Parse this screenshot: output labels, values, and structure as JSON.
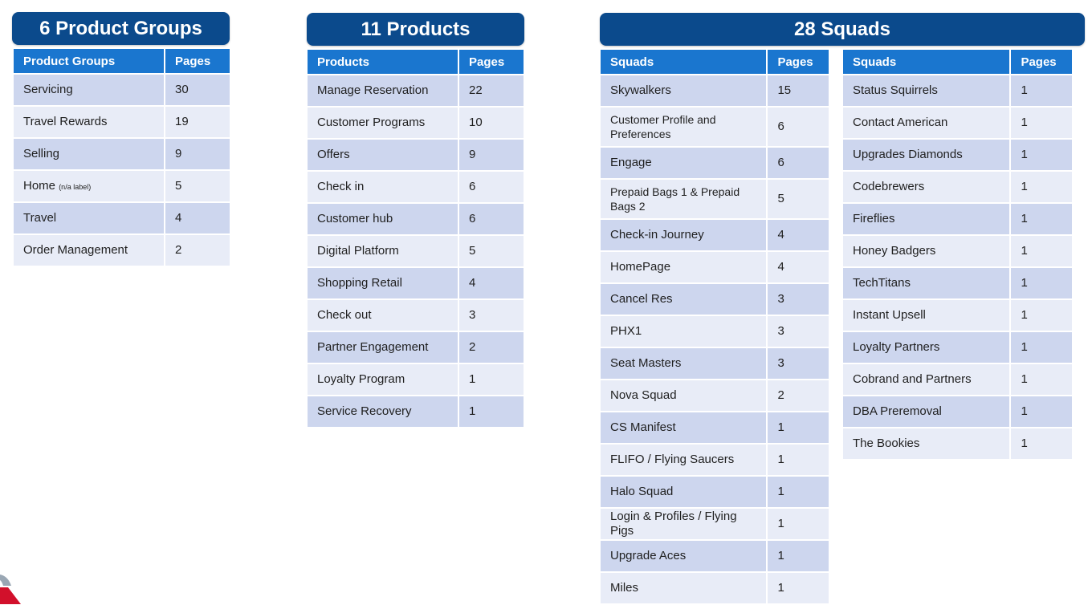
{
  "groups": {
    "banner": "6 Product Groups",
    "col1": "Product Groups",
    "col2": "Pages",
    "rows": [
      {
        "name": "Servicing",
        "pages": "30"
      },
      {
        "name": "Travel Rewards",
        "pages": "19"
      },
      {
        "name": "Selling",
        "pages": "9"
      },
      {
        "name": "Home",
        "note": "(n/a label)",
        "pages": "5"
      },
      {
        "name": "Travel",
        "pages": "4"
      },
      {
        "name": "Order Management",
        "pages": "2"
      }
    ]
  },
  "products": {
    "banner": "11 Products",
    "col1": "Products",
    "col2": "Pages",
    "rows": [
      {
        "name": "Manage Reservation",
        "pages": "22"
      },
      {
        "name": "Customer Programs",
        "pages": "10"
      },
      {
        "name": "Offers",
        "pages": "9"
      },
      {
        "name": "Check in",
        "pages": "6"
      },
      {
        "name": "Customer hub",
        "pages": "6"
      },
      {
        "name": "Digital Platform",
        "pages": "5"
      },
      {
        "name": "Shopping Retail",
        "pages": "4"
      },
      {
        "name": "Check out",
        "pages": "3"
      },
      {
        "name": "Partner Engagement",
        "pages": "2"
      },
      {
        "name": "Loyalty Program",
        "pages": "1"
      },
      {
        "name": "Service Recovery",
        "pages": "1"
      }
    ]
  },
  "squads": {
    "banner": "28 Squads",
    "col1": "Squads",
    "col2": "Pages",
    "left_rows": [
      {
        "name": "Skywalkers",
        "pages": "15"
      },
      {
        "name": "Customer Profile and Preferences",
        "pages": "6"
      },
      {
        "name": "Engage",
        "pages": "6"
      },
      {
        "name": "Prepaid Bags 1 & Prepaid Bags 2",
        "pages": "5"
      },
      {
        "name": "Check-in Journey",
        "pages": "4"
      },
      {
        "name": "HomePage",
        "pages": "4"
      },
      {
        "name": "Cancel Res",
        "pages": "3"
      },
      {
        "name": "PHX1",
        "pages": "3"
      },
      {
        "name": "Seat Masters",
        "pages": "3"
      },
      {
        "name": "Nova Squad",
        "pages": "2"
      },
      {
        "name": "CS Manifest",
        "pages": "1"
      },
      {
        "name": "FLIFO / Flying Saucers",
        "pages": "1"
      },
      {
        "name": "Halo Squad",
        "pages": "1"
      },
      {
        "name": "Login & Profiles / Flying Pigs",
        "pages": "1"
      },
      {
        "name": "Upgrade Aces",
        "pages": "1"
      },
      {
        "name": "Miles",
        "pages": "1"
      }
    ],
    "right_rows": [
      {
        "name": "Status Squirrels",
        "pages": "1"
      },
      {
        "name": "Contact American",
        "pages": "1"
      },
      {
        "name": "Upgrades Diamonds",
        "pages": "1"
      },
      {
        "name": "Codebrewers",
        "pages": "1"
      },
      {
        "name": "Fireflies",
        "pages": "1"
      },
      {
        "name": "Honey Badgers",
        "pages": "1"
      },
      {
        "name": "TechTitans",
        "pages": "1"
      },
      {
        "name": "Instant Upsell",
        "pages": "1"
      },
      {
        "name": "Loyalty Partners",
        "pages": "1"
      },
      {
        "name": "Cobrand and Partners",
        "pages": "1"
      },
      {
        "name": "DBA Preremoval",
        "pages": "1"
      },
      {
        "name": "The Bookies",
        "pages": "1"
      }
    ]
  },
  "colors": {
    "banner": "#0b4a8c",
    "header": "#1a76cf",
    "row_dark": "#cdd6ee",
    "row_light": "#e8ecf7"
  }
}
